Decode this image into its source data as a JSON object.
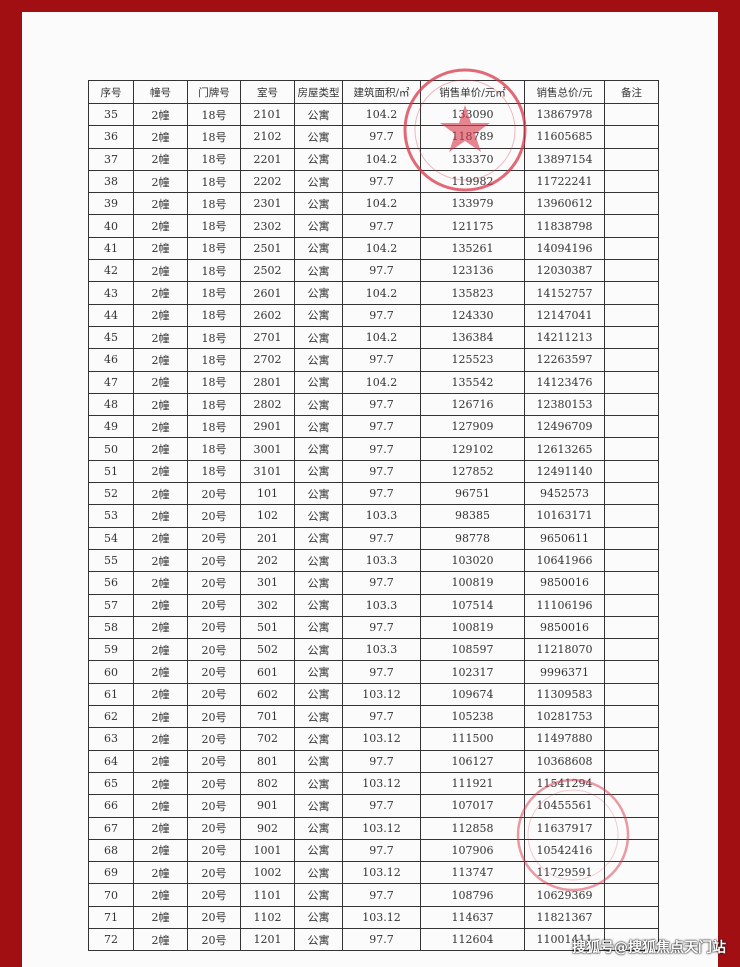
{
  "table": {
    "headers": [
      "序号",
      "幢号",
      "门牌号",
      "室号",
      "房屋类型",
      "建筑面积/㎡",
      "销售单价/元㎡",
      "销售总价/元",
      "备注"
    ],
    "rows": [
      [
        "35",
        "2幢",
        "18号",
        "2101",
        "公寓",
        "104.2",
        "133090",
        "13867978",
        ""
      ],
      [
        "36",
        "2幢",
        "18号",
        "2102",
        "公寓",
        "97.7",
        "118789",
        "11605685",
        ""
      ],
      [
        "37",
        "2幢",
        "18号",
        "2201",
        "公寓",
        "104.2",
        "133370",
        "13897154",
        ""
      ],
      [
        "38",
        "2幢",
        "18号",
        "2202",
        "公寓",
        "97.7",
        "119982",
        "11722241",
        ""
      ],
      [
        "39",
        "2幢",
        "18号",
        "2301",
        "公寓",
        "104.2",
        "133979",
        "13960612",
        ""
      ],
      [
        "40",
        "2幢",
        "18号",
        "2302",
        "公寓",
        "97.7",
        "121175",
        "11838798",
        ""
      ],
      [
        "41",
        "2幢",
        "18号",
        "2501",
        "公寓",
        "104.2",
        "135261",
        "14094196",
        ""
      ],
      [
        "42",
        "2幢",
        "18号",
        "2502",
        "公寓",
        "97.7",
        "123136",
        "12030387",
        ""
      ],
      [
        "43",
        "2幢",
        "18号",
        "2601",
        "公寓",
        "104.2",
        "135823",
        "14152757",
        ""
      ],
      [
        "44",
        "2幢",
        "18号",
        "2602",
        "公寓",
        "97.7",
        "124330",
        "12147041",
        ""
      ],
      [
        "45",
        "2幢",
        "18号",
        "2701",
        "公寓",
        "104.2",
        "136384",
        "14211213",
        ""
      ],
      [
        "46",
        "2幢",
        "18号",
        "2702",
        "公寓",
        "97.7",
        "125523",
        "12263597",
        ""
      ],
      [
        "47",
        "2幢",
        "18号",
        "2801",
        "公寓",
        "104.2",
        "135542",
        "14123476",
        ""
      ],
      [
        "48",
        "2幢",
        "18号",
        "2802",
        "公寓",
        "97.7",
        "126716",
        "12380153",
        ""
      ],
      [
        "49",
        "2幢",
        "18号",
        "2901",
        "公寓",
        "97.7",
        "127909",
        "12496709",
        ""
      ],
      [
        "50",
        "2幢",
        "18号",
        "3001",
        "公寓",
        "97.7",
        "129102",
        "12613265",
        ""
      ],
      [
        "51",
        "2幢",
        "18号",
        "3101",
        "公寓",
        "97.7",
        "127852",
        "12491140",
        ""
      ],
      [
        "52",
        "2幢",
        "20号",
        "101",
        "公寓",
        "97.7",
        "96751",
        "9452573",
        ""
      ],
      [
        "53",
        "2幢",
        "20号",
        "102",
        "公寓",
        "103.3",
        "98385",
        "10163171",
        ""
      ],
      [
        "54",
        "2幢",
        "20号",
        "201",
        "公寓",
        "97.7",
        "98778",
        "9650611",
        ""
      ],
      [
        "55",
        "2幢",
        "20号",
        "202",
        "公寓",
        "103.3",
        "103020",
        "10641966",
        ""
      ],
      [
        "56",
        "2幢",
        "20号",
        "301",
        "公寓",
        "97.7",
        "100819",
        "9850016",
        ""
      ],
      [
        "57",
        "2幢",
        "20号",
        "302",
        "公寓",
        "103.3",
        "107514",
        "11106196",
        ""
      ],
      [
        "58",
        "2幢",
        "20号",
        "501",
        "公寓",
        "97.7",
        "100819",
        "9850016",
        ""
      ],
      [
        "59",
        "2幢",
        "20号",
        "502",
        "公寓",
        "103.3",
        "108597",
        "11218070",
        ""
      ],
      [
        "60",
        "2幢",
        "20号",
        "601",
        "公寓",
        "97.7",
        "102317",
        "9996371",
        ""
      ],
      [
        "61",
        "2幢",
        "20号",
        "602",
        "公寓",
        "103.12",
        "109674",
        "11309583",
        ""
      ],
      [
        "62",
        "2幢",
        "20号",
        "701",
        "公寓",
        "97.7",
        "105238",
        "10281753",
        ""
      ],
      [
        "63",
        "2幢",
        "20号",
        "702",
        "公寓",
        "103.12",
        "111500",
        "11497880",
        ""
      ],
      [
        "64",
        "2幢",
        "20号",
        "801",
        "公寓",
        "97.7",
        "106127",
        "10368608",
        ""
      ],
      [
        "65",
        "2幢",
        "20号",
        "802",
        "公寓",
        "103.12",
        "111921",
        "11541294",
        ""
      ],
      [
        "66",
        "2幢",
        "20号",
        "901",
        "公寓",
        "97.7",
        "107017",
        "10455561",
        ""
      ],
      [
        "67",
        "2幢",
        "20号",
        "902",
        "公寓",
        "103.12",
        "112858",
        "11637917",
        ""
      ],
      [
        "68",
        "2幢",
        "20号",
        "1001",
        "公寓",
        "97.7",
        "107906",
        "10542416",
        ""
      ],
      [
        "69",
        "2幢",
        "20号",
        "1002",
        "公寓",
        "103.12",
        "113747",
        "11729591",
        ""
      ],
      [
        "70",
        "2幢",
        "20号",
        "1101",
        "公寓",
        "97.7",
        "108796",
        "10629369",
        ""
      ],
      [
        "71",
        "2幢",
        "20号",
        "1102",
        "公寓",
        "103.12",
        "114637",
        "11821367",
        ""
      ],
      [
        "72",
        "2幢",
        "20号",
        "1201",
        "公寓",
        "97.7",
        "112604",
        "11001411",
        ""
      ]
    ]
  },
  "watermark": "搜狐号@搜狐焦点天门站",
  "colors": {
    "border": "#a10f12",
    "stamp": "#d9374a"
  }
}
